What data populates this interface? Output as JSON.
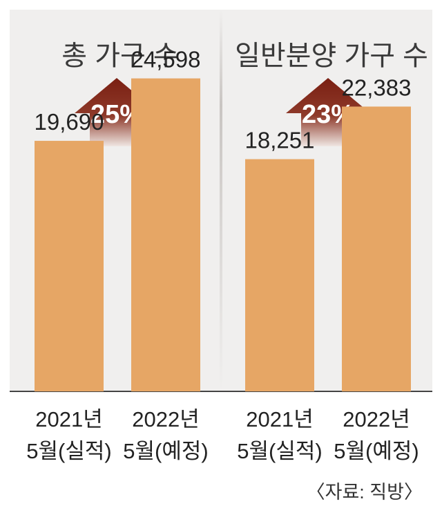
{
  "chart_data": [
    {
      "type": "bar",
      "title": "총 가구 수",
      "categories": [
        [
          "2021년",
          "5월(실적)"
        ],
        [
          "2022년",
          "5월(예정)"
        ]
      ],
      "values": [
        19690,
        24598
      ],
      "value_labels": [
        "19,690",
        "24,598"
      ],
      "change_label": "25%",
      "ylim": [
        0,
        30000
      ],
      "grid": false
    },
    {
      "type": "bar",
      "title": "일반분양 가구 수",
      "categories": [
        [
          "2021년",
          "5월(실적)"
        ],
        [
          "2022년",
          "5월(예정)"
        ]
      ],
      "values": [
        18251,
        22383
      ],
      "value_labels": [
        "18,251",
        "22,383"
      ],
      "change_label": "23%",
      "ylim": [
        0,
        30000
      ],
      "grid": false
    }
  ],
  "source": "〈자료: 직방〉",
  "colors": {
    "background": "#f0efee",
    "bar": "#e6a665",
    "arrow_top": "#7a1f12",
    "arrow_bottom": "#efe6e2",
    "divider": "#d0ccc9"
  }
}
